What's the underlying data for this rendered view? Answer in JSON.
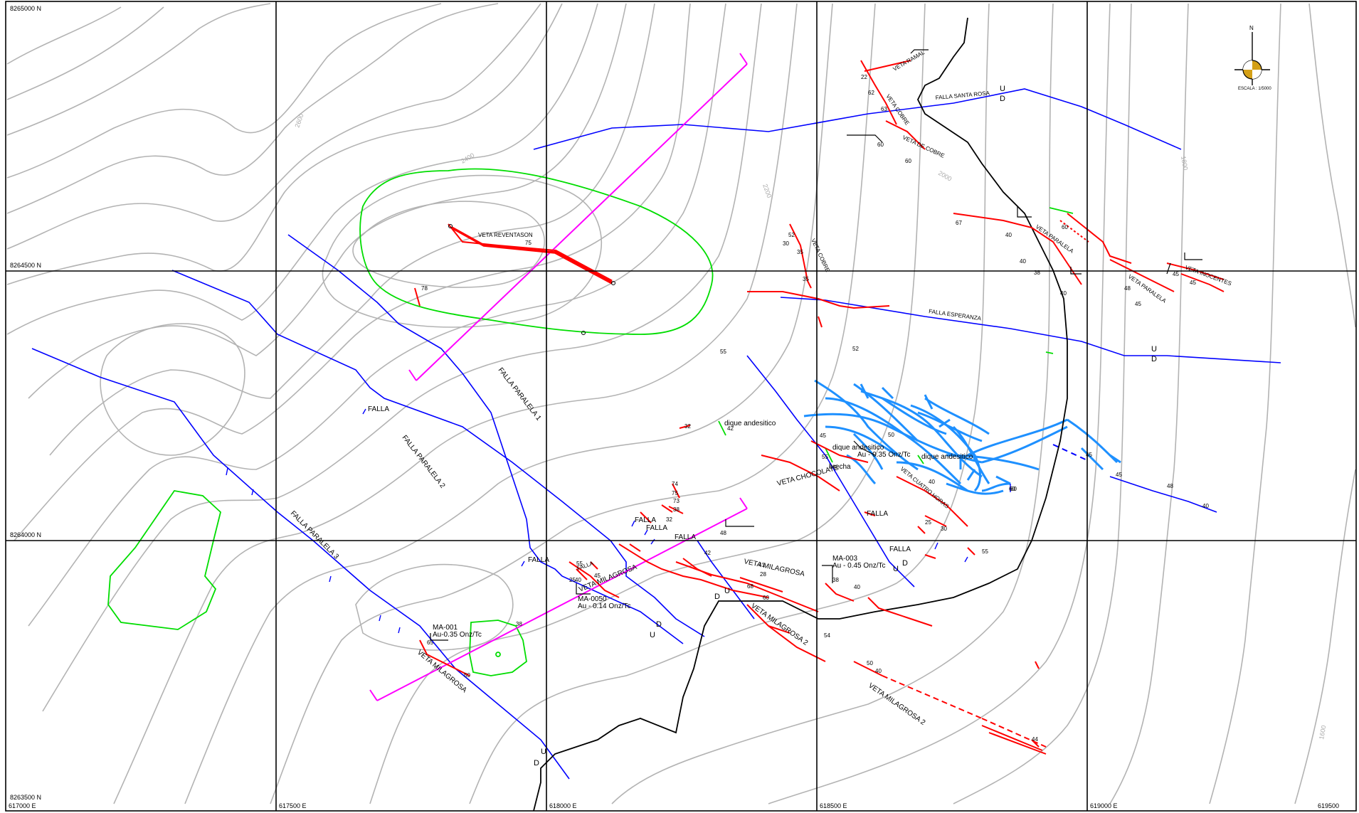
{
  "map": {
    "northings": [
      "8265000 N",
      "8264500 N",
      "8264000 N",
      "8263500 N"
    ],
    "eastings": [
      "617000 E",
      "617500 E",
      "618000 E",
      "618500 E",
      "619000 E",
      "619500"
    ],
    "north_arrow": {
      "label": "N",
      "scale": "ESCALA : 1/5000"
    },
    "contour_labels": [
      "2600",
      "2400",
      "2200",
      "2000",
      "1800",
      "1600"
    ],
    "colors": {
      "fault": "#0000ff",
      "vein": "#ff0000",
      "section": "#ff00ff",
      "dike": "#00cc00",
      "contour": "#b0b0b0",
      "road": "#000000",
      "stockwork": "#1e90ff"
    },
    "faults": {
      "santa_rosa": "FALLA SANTA ROSA",
      "esperanza": "FALLA ESPERANZA",
      "paralela_1": "FALLA PARALELA 1",
      "paralela_2": "FALLA PARALELA 2",
      "paralela_3": "FALLA PARALELA 3",
      "falla": "FALLA"
    },
    "veins": {
      "reventason": "VETA REVENTASON",
      "ramal": "VETA RAMAL",
      "cobre": "VETA COBRE",
      "de_cobre": "VETA DE COBRE",
      "paralela": "VETA PARALELA",
      "inocentes": "VETA INOCENTES",
      "chocolate": "VETA CHOCOLATE",
      "cuatro_horas": "VETA CUATRO HORAS",
      "milagrosa": "VETA MILAGROSA",
      "milagrosa_2": "VETA MILAGROSA 2"
    },
    "samples": {
      "ma001_id": "MA-001",
      "ma001_val": "Au-0.35 Onz/Tc",
      "ma003_id": "MA-003",
      "ma003_val": "Au - 0.45 Onz/Tc",
      "ma050_id": "MA-0050",
      "ma050_val": "Au - 0.14 Onz/Tc",
      "stock_val": "Au - 0.35 Onz/Tc"
    },
    "features": {
      "dike": "dique andesitico",
      "brecha": "brecha"
    },
    "marks": {
      "up": "U",
      "down": "D"
    },
    "dips": [
      "78",
      "75",
      "52",
      "30",
      "35",
      "35",
      "22",
      "62",
      "63",
      "60",
      "60",
      "67",
      "40",
      "40",
      "38",
      "40",
      "60",
      "45",
      "48",
      "45",
      "45",
      "32",
      "42",
      "45",
      "55",
      "60",
      "50",
      "40",
      "45",
      "45",
      "48",
      "40",
      "74",
      "75",
      "73",
      "38",
      "32",
      "55",
      "45",
      "40",
      "25",
      "42",
      "48",
      "41",
      "28",
      "68",
      "60",
      "54",
      "38",
      "40",
      "65",
      "50",
      "38",
      "50",
      "40",
      "44",
      "25",
      "30",
      "55",
      "60",
      "55",
      "52"
    ]
  }
}
